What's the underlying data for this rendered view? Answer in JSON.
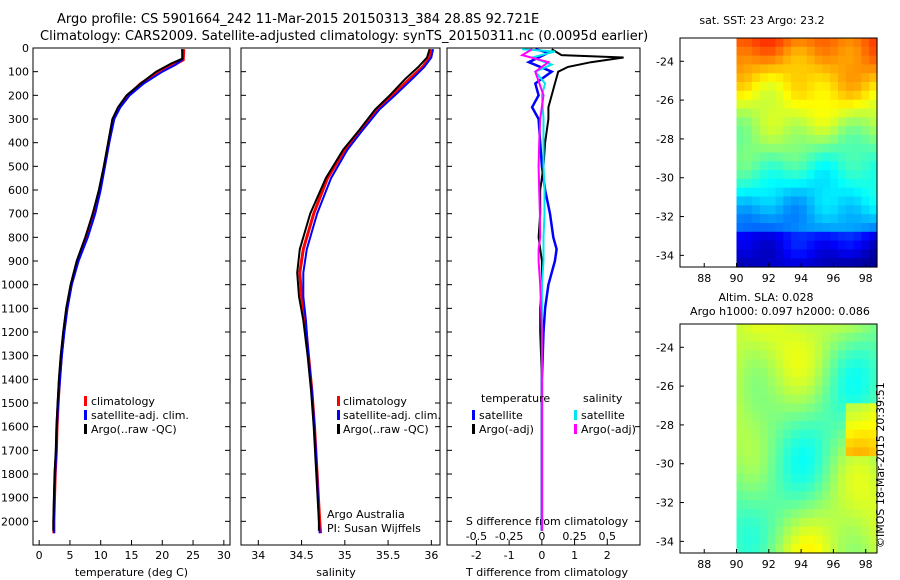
{
  "header": {
    "title_line1": "Argo profile: CS 5901664_242 11-Mar-2015 20150313_384 28.8S 92.721E",
    "title_line2": "Climatology: CARS2009. Satellite-adjusted climatology: synTS_20150311.nc (0.0095d earlier)"
  },
  "footer": {
    "stamp": "©IMOS 18-Mar-2015 20:39:51"
  },
  "colors": {
    "climatology": "#ff0000",
    "satellite": "#0000ff",
    "argo": "#000000",
    "salinity_satellite": "#00e5ee",
    "salinity_argo": "#ff00ff"
  },
  "chart_data": [
    {
      "id": "temperature",
      "type": "line",
      "xlabel": "temperature (deg C)",
      "xlim": [
        -1,
        31
      ],
      "ylim": [
        2100,
        0
      ],
      "xticks": [
        "0",
        "5",
        "10",
        "15",
        "20",
        "25",
        "30"
      ],
      "yticks": [
        "0",
        "100",
        "200",
        "300",
        "400",
        "500",
        "600",
        "700",
        "800",
        "900",
        "1000",
        "1100",
        "1200",
        "1300",
        "1400",
        "1500",
        "1600",
        "1700",
        "1800",
        "1900",
        "2000"
      ],
      "legend": [
        "climatology",
        "satellite-adj. clim.",
        "Argo(..raw -QC)"
      ],
      "series": [
        {
          "name": "climatology",
          "points": [
            [
              23.5,
              5
            ],
            [
              23.4,
              50
            ],
            [
              22.0,
              70
            ],
            [
              19.5,
              100
            ],
            [
              16.5,
              150
            ],
            [
              14.5,
              200
            ],
            [
              13.0,
              250
            ],
            [
              12.0,
              300
            ],
            [
              11.3,
              400
            ],
            [
              10.6,
              500
            ],
            [
              9.8,
              600
            ],
            [
              8.8,
              700
            ],
            [
              7.6,
              800
            ],
            [
              6.2,
              900
            ],
            [
              5.2,
              1000
            ],
            [
              4.5,
              1100
            ],
            [
              4.0,
              1200
            ],
            [
              3.6,
              1300
            ],
            [
              3.3,
              1400
            ],
            [
              3.1,
              1500
            ],
            [
              2.9,
              1600
            ],
            [
              2.8,
              1700
            ],
            [
              2.6,
              1800
            ],
            [
              2.5,
              1900
            ],
            [
              2.4,
              2000
            ],
            [
              2.4,
              2050
            ]
          ]
        },
        {
          "name": "satellite-adj. clim.",
          "points": [
            [
              23.3,
              5
            ],
            [
              23.2,
              50
            ],
            [
              22.2,
              70
            ],
            [
              20.0,
              100
            ],
            [
              17.0,
              150
            ],
            [
              14.7,
              200
            ],
            [
              13.2,
              250
            ],
            [
              12.2,
              300
            ],
            [
              11.4,
              400
            ],
            [
              10.7,
              500
            ],
            [
              10.0,
              600
            ],
            [
              9.1,
              700
            ],
            [
              7.9,
              800
            ],
            [
              6.4,
              900
            ],
            [
              5.3,
              1000
            ],
            [
              4.6,
              1100
            ],
            [
              4.1,
              1200
            ],
            [
              3.7,
              1300
            ],
            [
              3.4,
              1400
            ],
            [
              3.1,
              1500
            ],
            [
              2.9,
              1600
            ],
            [
              2.8,
              1700
            ],
            [
              2.6,
              1800
            ],
            [
              2.5,
              1900
            ],
            [
              2.4,
              2000
            ],
            [
              2.4,
              2050
            ]
          ]
        },
        {
          "name": "Argo(..raw -QC)",
          "points": [
            [
              23.2,
              5
            ],
            [
              23.3,
              45
            ],
            [
              21.5,
              65
            ],
            [
              19.0,
              100
            ],
            [
              16.5,
              150
            ],
            [
              14.2,
              200
            ],
            [
              12.8,
              250
            ],
            [
              11.9,
              300
            ],
            [
              11.2,
              400
            ],
            [
              10.5,
              500
            ],
            [
              9.7,
              600
            ],
            [
              8.7,
              700
            ],
            [
              7.5,
              800
            ],
            [
              6.1,
              900
            ],
            [
              5.1,
              1000
            ],
            [
              4.4,
              1100
            ],
            [
              3.9,
              1200
            ],
            [
              3.5,
              1300
            ],
            [
              3.2,
              1400
            ],
            [
              3.0,
              1500
            ],
            [
              2.8,
              1600
            ],
            [
              2.7,
              1700
            ],
            [
              2.5,
              1800
            ],
            [
              2.4,
              1900
            ],
            [
              2.3,
              2000
            ],
            [
              2.3,
              2040
            ]
          ]
        }
      ]
    },
    {
      "id": "salinity",
      "type": "line",
      "xlabel": "salinity",
      "xlim": [
        33.8,
        36.1
      ],
      "ylim": [
        2100,
        0
      ],
      "xticks": [
        "34",
        "34.5",
        "35",
        "35.5",
        "36"
      ],
      "legend": [
        "climatology",
        "satellite-adj. clim.",
        "Argo(..raw -QC)"
      ],
      "annotation": [
        "Argo Australia",
        "PI: Susan Wijffels"
      ],
      "series": [
        {
          "name": "climatology",
          "points": [
            [
              36.0,
              5
            ],
            [
              35.98,
              40
            ],
            [
              35.9,
              80
            ],
            [
              35.75,
              130
            ],
            [
              35.55,
              200
            ],
            [
              35.38,
              260
            ],
            [
              35.18,
              350
            ],
            [
              35.0,
              430
            ],
            [
              34.8,
              550
            ],
            [
              34.64,
              700
            ],
            [
              34.52,
              850
            ],
            [
              34.48,
              950
            ],
            [
              34.5,
              1050
            ],
            [
              34.54,
              1150
            ],
            [
              34.58,
              1300
            ],
            [
              34.62,
              1450
            ],
            [
              34.65,
              1600
            ],
            [
              34.68,
              1800
            ],
            [
              34.71,
              2000
            ],
            [
              34.72,
              2050
            ]
          ]
        },
        {
          "name": "satellite-adj. clim.",
          "points": [
            [
              36.02,
              5
            ],
            [
              36.0,
              40
            ],
            [
              35.92,
              80
            ],
            [
              35.78,
              130
            ],
            [
              35.58,
              200
            ],
            [
              35.4,
              260
            ],
            [
              35.2,
              350
            ],
            [
              35.03,
              430
            ],
            [
              34.84,
              550
            ],
            [
              34.68,
              700
            ],
            [
              34.56,
              850
            ],
            [
              34.52,
              950
            ],
            [
              34.52,
              1050
            ],
            [
              34.55,
              1150
            ],
            [
              34.58,
              1300
            ],
            [
              34.62,
              1450
            ],
            [
              34.65,
              1600
            ],
            [
              34.68,
              1800
            ],
            [
              34.7,
              2000
            ],
            [
              34.71,
              2050
            ]
          ]
        },
        {
          "name": "Argo(..raw -QC)",
          "points": [
            [
              35.98,
              5
            ],
            [
              35.95,
              40
            ],
            [
              35.85,
              80
            ],
            [
              35.7,
              130
            ],
            [
              35.52,
              200
            ],
            [
              35.35,
              260
            ],
            [
              35.16,
              350
            ],
            [
              34.98,
              430
            ],
            [
              34.78,
              550
            ],
            [
              34.6,
              700
            ],
            [
              34.48,
              850
            ],
            [
              34.45,
              950
            ],
            [
              34.47,
              1050
            ],
            [
              34.52,
              1150
            ],
            [
              34.57,
              1300
            ],
            [
              34.61,
              1450
            ],
            [
              34.64,
              1600
            ],
            [
              34.67,
              1800
            ],
            [
              34.7,
              2000
            ],
            [
              34.7,
              2040
            ]
          ]
        }
      ]
    },
    {
      "id": "difference",
      "type": "line",
      "xlabel": "T difference from climatology",
      "xlabel_top": "S difference from climatology",
      "xlim": [
        -2.9,
        3.0
      ],
      "ylim": [
        2100,
        0
      ],
      "xticks": [
        "-2",
        "-1",
        "0",
        "1",
        "2"
      ],
      "xticks_s": [
        "-0.5",
        "-0.25",
        "0",
        "0.25",
        "0.5"
      ],
      "legend_groups": [
        "temperature",
        "salinity"
      ],
      "legend": [
        "satellite",
        "Argo(-adj)",
        "satellite",
        "Argo(-adj)"
      ],
      "series": [
        {
          "name": "temperature satellite",
          "points": [
            [
              -0.2,
              5
            ],
            [
              0.2,
              20
            ],
            [
              -0.4,
              60
            ],
            [
              0.3,
              100
            ],
            [
              -0.2,
              150
            ],
            [
              -0.1,
              200
            ],
            [
              -0.3,
              250
            ],
            [
              -0.1,
              300
            ],
            [
              -0.05,
              400
            ],
            [
              0,
              500
            ],
            [
              0.1,
              600
            ],
            [
              0.25,
              700
            ],
            [
              0.35,
              800
            ],
            [
              0.45,
              850
            ],
            [
              0.4,
              900
            ],
            [
              0.2,
              1000
            ],
            [
              0.1,
              1100
            ],
            [
              0.05,
              1200
            ],
            [
              0,
              1400
            ],
            [
              0,
              2040
            ]
          ]
        },
        {
          "name": "temperature Argo(-adj)",
          "points": [
            [
              0.3,
              5
            ],
            [
              0.6,
              30
            ],
            [
              2.5,
              40
            ],
            [
              1.5,
              60
            ],
            [
              0.8,
              80
            ],
            [
              0.5,
              100
            ],
            [
              0.4,
              150
            ],
            [
              0.3,
              200
            ],
            [
              0.2,
              250
            ],
            [
              0.2,
              300
            ],
            [
              0.1,
              400
            ],
            [
              0.05,
              500
            ],
            [
              -0.05,
              600
            ],
            [
              -0.05,
              700
            ],
            [
              -0.1,
              800
            ],
            [
              0,
              900
            ],
            [
              0,
              1000
            ],
            [
              -0.05,
              1100
            ],
            [
              -0.05,
              1200
            ],
            [
              0,
              1400
            ],
            [
              0,
              2040
            ]
          ]
        },
        {
          "name": "salinity satellite",
          "points": [
            [
              -0.6,
              5
            ],
            [
              0.4,
              15
            ],
            [
              -0.3,
              40
            ],
            [
              0.3,
              70
            ],
            [
              -0.2,
              100
            ],
            [
              0.1,
              150
            ],
            [
              0,
              200
            ],
            [
              0.05,
              300
            ],
            [
              0.05,
              400
            ],
            [
              0.05,
              500
            ],
            [
              0.08,
              600
            ],
            [
              0.08,
              700
            ],
            [
              0.05,
              800
            ],
            [
              0.05,
              900
            ],
            [
              0,
              1000
            ],
            [
              0,
              1200
            ],
            [
              0,
              1500
            ],
            [
              0,
              2040
            ]
          ]
        },
        {
          "name": "salinity Argo(-adj)",
          "points": [
            [
              -0.3,
              5
            ],
            [
              -0.6,
              30
            ],
            [
              0.2,
              60
            ],
            [
              -0.2,
              100
            ],
            [
              0.05,
              200
            ],
            [
              -0.05,
              300
            ],
            [
              -0.08,
              400
            ],
            [
              -0.1,
              500
            ],
            [
              -0.08,
              600
            ],
            [
              -0.06,
              700
            ],
            [
              -0.05,
              800
            ],
            [
              -0.1,
              850
            ],
            [
              -0.1,
              900
            ],
            [
              -0.05,
              1000
            ],
            [
              0,
              1200
            ],
            [
              0,
              1500
            ],
            [
              0,
              2040
            ]
          ]
        }
      ]
    },
    {
      "id": "sst-map",
      "type": "heatmap",
      "title": "sat. SST: 23 Argo: 23.2",
      "xlim": [
        86.5,
        98.7
      ],
      "ylim": [
        -34.6,
        -22.8
      ],
      "xticks": [
        "88",
        "90",
        "92",
        "94",
        "96",
        "98"
      ],
      "yticks": [
        "-24",
        "-26",
        "-28",
        "-30",
        "-32",
        "-34"
      ],
      "data_lon_start": 90
    },
    {
      "id": "sla-map",
      "type": "heatmap",
      "title_line1": "Altim. SLA: 0.028",
      "title_line2": "Argo h1000: 0.097 h2000: 0.086",
      "xlim": [
        86.5,
        98.7
      ],
      "ylim": [
        -34.6,
        -22.8
      ],
      "xticks": [
        "88",
        "90",
        "92",
        "94",
        "96",
        "98"
      ],
      "yticks": [
        "-24",
        "-26",
        "-28",
        "-30",
        "-32",
        "-34"
      ],
      "data_lon_start": 90
    }
  ]
}
